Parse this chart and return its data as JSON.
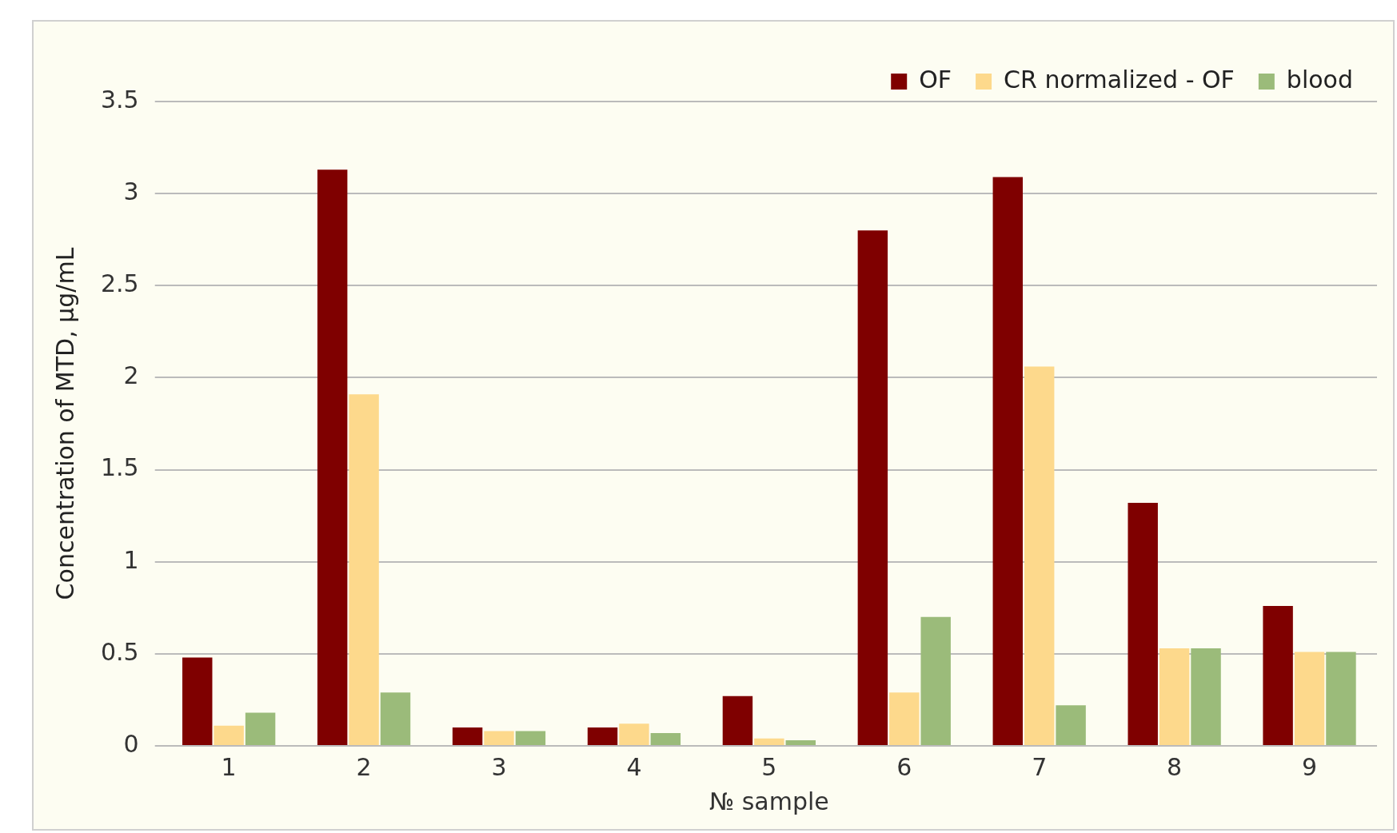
{
  "chart_data": {
    "type": "bar",
    "xlabel": "№ sample",
    "ylabel": "Concentration of MTD, µg/mL",
    "categories": [
      "1",
      "2",
      "3",
      "4",
      "5",
      "6",
      "7",
      "8",
      "9"
    ],
    "series": [
      {
        "name": "OF",
        "color": "#7f0000",
        "values": [
          0.48,
          3.13,
          0.1,
          0.1,
          0.27,
          2.8,
          3.09,
          1.32,
          0.76
        ]
      },
      {
        "name": "CR normalized - OF",
        "color": "#fdd98c",
        "values": [
          0.11,
          1.91,
          0.08,
          0.12,
          0.04,
          0.29,
          2.06,
          0.53,
          0.51
        ]
      },
      {
        "name": "blood",
        "color": "#9bbb7a",
        "values": [
          0.18,
          0.29,
          0.08,
          0.07,
          0.03,
          0.7,
          0.22,
          0.53,
          0.51
        ]
      }
    ],
    "ylim": [
      0,
      3.5
    ],
    "yticks": [
      0,
      0.5,
      1,
      1.5,
      2,
      2.5,
      3,
      3.5
    ],
    "grid": "y",
    "legend": "top right"
  }
}
